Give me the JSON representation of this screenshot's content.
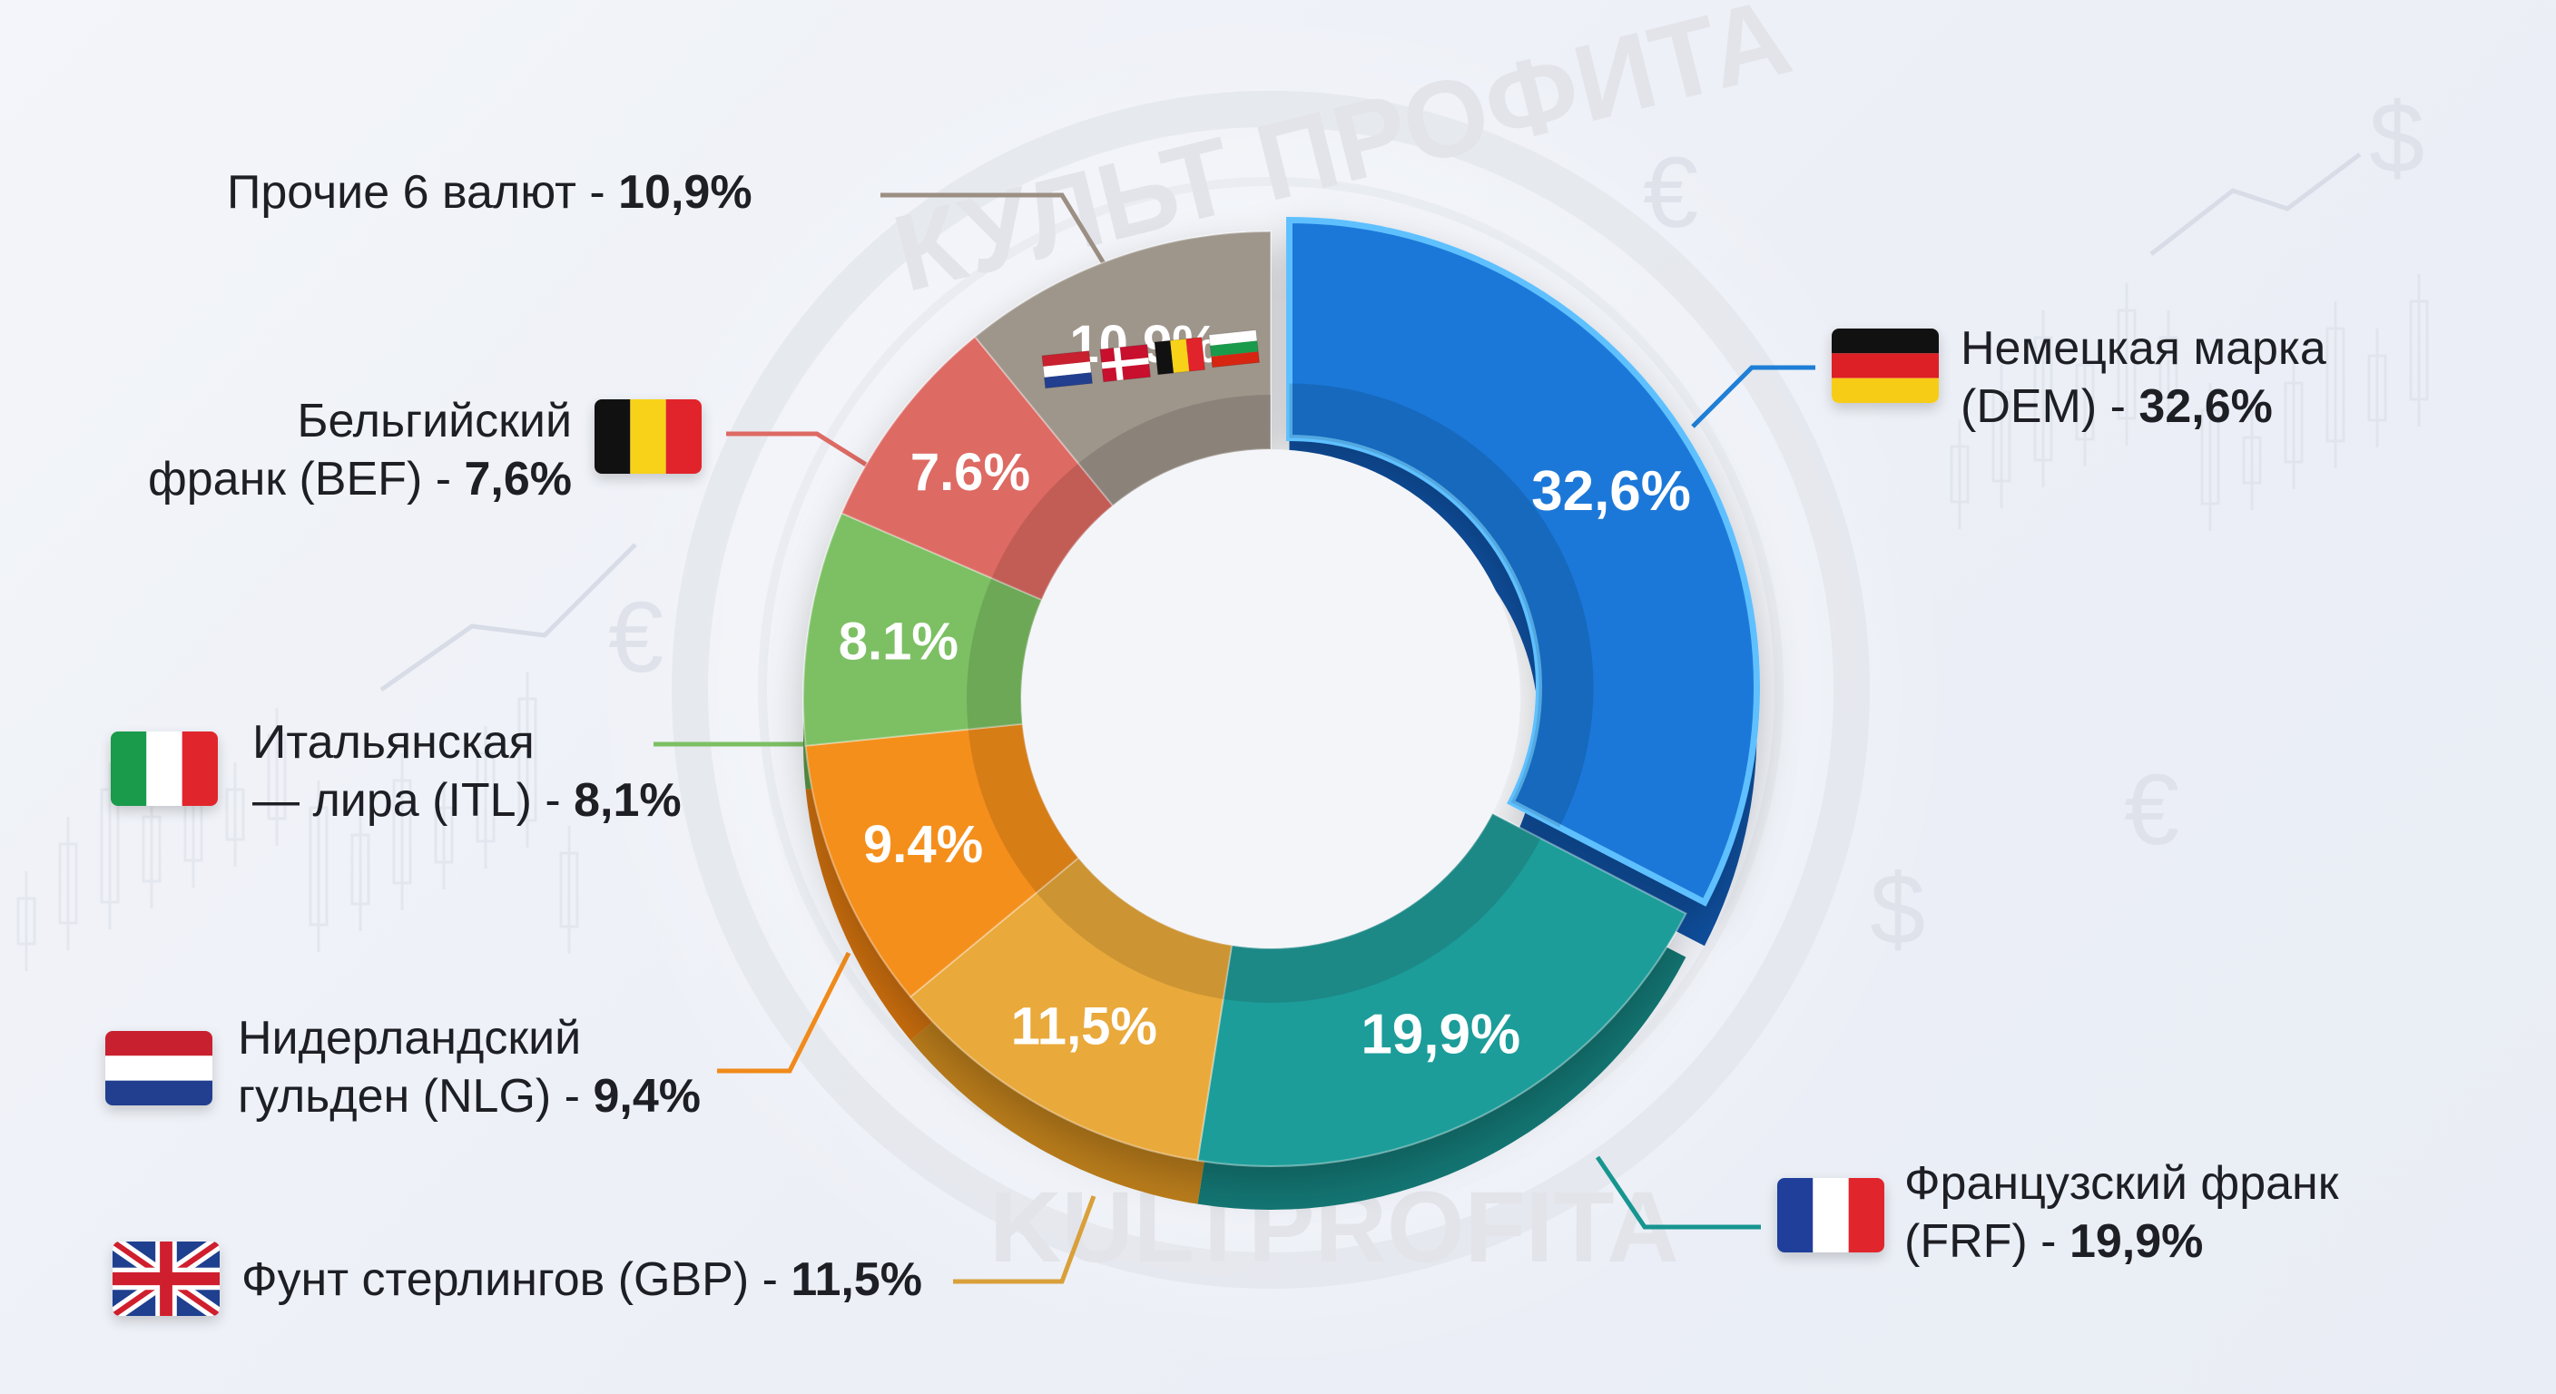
{
  "chart_data": {
    "type": "pie",
    "variant": "donut",
    "start_angle_deg": 0,
    "direction": "clockwise",
    "exploded": "DEM",
    "slices": [
      {
        "code": "DEM",
        "value": 32.6,
        "label": "32,6%",
        "color": "#1a78d8",
        "side": "#0f4f9e",
        "flag": "germany-flag",
        "legend": [
          "Немецкая марка",
          "(DEM) - 32,6%"
        ]
      },
      {
        "code": "FRF",
        "value": 19.9,
        "label": "19,9%",
        "color": "#1f9d9a",
        "side": "#137673",
        "flag": "france-flag",
        "legend": [
          "Французский франк",
          "(FRF) - 19,9%"
        ]
      },
      {
        "code": "GBP",
        "value": 11.5,
        "label": "11,5%",
        "color": "#e9a93a",
        "side": "#b97c1b",
        "flag": "uk-flag",
        "legend": [
          "Фунт стерлингов (GBP) - 11,5%"
        ]
      },
      {
        "code": "NLG",
        "value": 9.4,
        "label": "9.4%",
        "color": "#f48f1c",
        "side": "#c96d0e",
        "flag": "netherlands-flag",
        "legend": [
          "Нидерландский",
          "гульден (NLG) - 9,4%"
        ]
      },
      {
        "code": "ITL",
        "value": 8.1,
        "label": "8.1%",
        "color": "#7cc063",
        "side": "#5a9446",
        "flag": "italy-flag",
        "legend": [
          "Итальянская",
          "— лира (ITL) - 8,1%"
        ]
      },
      {
        "code": "BEF",
        "value": 7.6,
        "label": "7.6%",
        "color": "#dd6a64",
        "side": "#b24b46",
        "flag": "belgium-flag",
        "legend": [
          "Бельгийский",
          "франк (BEF) - 7,6%"
        ]
      },
      {
        "code": "OTHER",
        "value": 10.9,
        "label": "10,9%",
        "color": "#9f968b",
        "side": "#7a7268",
        "flag": "mini-flags",
        "legend": [
          "Прочие 6 валют - 10,9%"
        ]
      }
    ]
  },
  "watermark": {
    "top": "КУЛЬТ ПРОФИТА",
    "bottom": "KULTPROFITA"
  },
  "colors": {
    "leader_dem": "#1e7fd6",
    "leader_frf": "#179590",
    "leader_gbp": "#d9a03a",
    "leader_nlg": "#f08a1a",
    "leader_itl": "#7cc063",
    "leader_bef": "#dd6a64",
    "leader_other": "#9c8f83"
  }
}
